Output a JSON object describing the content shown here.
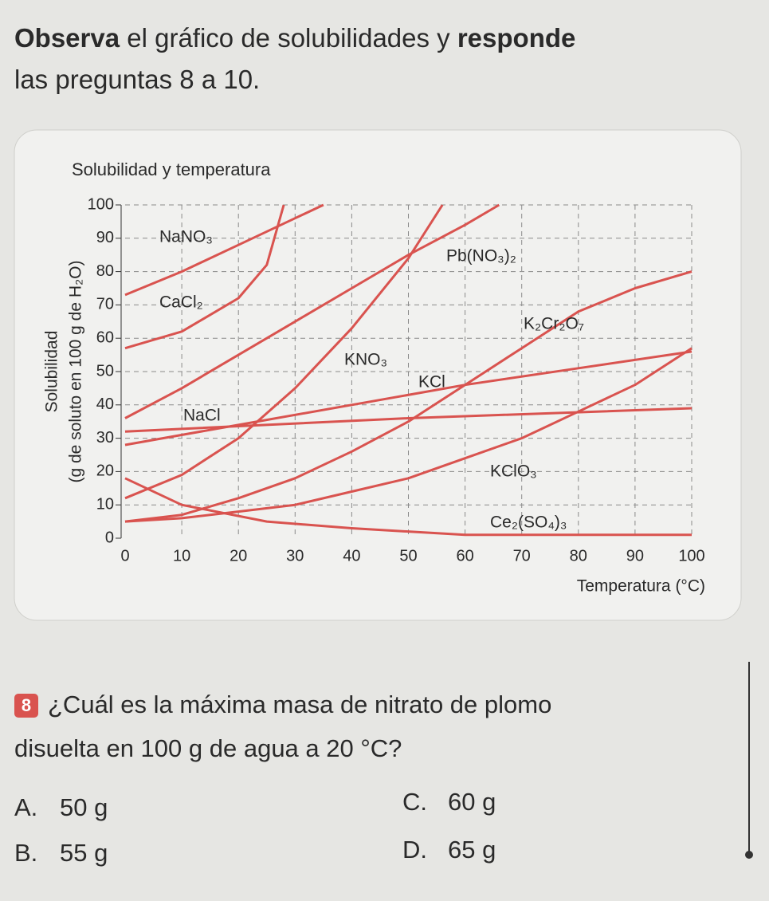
{
  "intro": {
    "lines": [
      [
        {
          "text": "Observa",
          "bold": true
        },
        {
          "text": " el gráfico de solubilidades y ",
          "bold": false
        },
        {
          "text": "responde",
          "bold": true
        }
      ],
      [
        {
          "text": "las preguntas 8 a 10.",
          "bold": false
        }
      ]
    ]
  },
  "chart_data": {
    "type": "line",
    "title": "Solubilidad y temperatura",
    "xlabel": "Temperatura (°C)",
    "ylabel": [
      "Solubilidad",
      "(g de soluto en 100 g de H₂O)"
    ],
    "xlim": [
      0,
      100
    ],
    "ylim": [
      0,
      100
    ],
    "xticks": [
      0,
      10,
      20,
      30,
      40,
      50,
      60,
      70,
      80,
      90,
      100
    ],
    "yticks": [
      0,
      10,
      20,
      30,
      40,
      50,
      60,
      70,
      80,
      90,
      100
    ],
    "grid": true,
    "series": [
      {
        "name": "NaNO₃",
        "color": "#d9534f",
        "x": [
          0,
          10,
          20,
          30,
          35
        ],
        "values": [
          73,
          80,
          88,
          96,
          100
        ]
      },
      {
        "name": "CaCl₂",
        "color": "#d9534f",
        "x": [
          0,
          10,
          20,
          25,
          28
        ],
        "values": [
          57,
          62,
          72,
          82,
          100
        ]
      },
      {
        "name": "Pb(NO₃)₂",
        "color": "#d9534f",
        "x": [
          0,
          10,
          20,
          30,
          40,
          50,
          60,
          66
        ],
        "values": [
          36,
          45,
          55,
          65,
          75,
          85,
          94,
          100
        ]
      },
      {
        "name": "KNO₃",
        "color": "#d9534f",
        "x": [
          0,
          10,
          20,
          30,
          40,
          50,
          56
        ],
        "values": [
          12,
          19,
          30,
          45,
          63,
          84,
          100
        ]
      },
      {
        "name": "K₂Cr₂O₇",
        "color": "#d9534f",
        "x": [
          0,
          10,
          20,
          30,
          40,
          50,
          60,
          70,
          80,
          90,
          100
        ],
        "values": [
          5,
          7,
          12,
          18,
          26,
          35,
          46,
          57,
          68,
          75,
          80
        ]
      },
      {
        "name": "KCl",
        "color": "#d9534f",
        "x": [
          0,
          20,
          40,
          60,
          80,
          100
        ],
        "values": [
          28,
          34,
          40,
          46,
          51,
          56
        ]
      },
      {
        "name": "NaCl",
        "color": "#d9534f",
        "x": [
          0,
          50,
          100
        ],
        "values": [
          32,
          36,
          39
        ]
      },
      {
        "name": "KClO₃",
        "color": "#d9534f",
        "x": [
          0,
          10,
          20,
          30,
          40,
          50,
          60,
          70,
          80,
          90,
          100
        ],
        "values": [
          5,
          6,
          8,
          10,
          14,
          18,
          24,
          30,
          38,
          46,
          57
        ]
      },
      {
        "name": "Ce₂(SO₄)₃",
        "color": "#d9534f",
        "x": [
          0,
          10,
          25,
          40,
          60,
          100
        ],
        "values": [
          18,
          10,
          5,
          3,
          1,
          1
        ]
      }
    ]
  },
  "question": {
    "number": "8",
    "lines": [
      "¿Cuál es la máxima masa de nitrato de plomo",
      "disuelta en 100 g de agua a 20 °C?"
    ],
    "options": [
      {
        "letter": "A.",
        "text": "50 g"
      },
      {
        "letter": "B.",
        "text": "55 g"
      },
      {
        "letter": "C.",
        "text": "60 g"
      },
      {
        "letter": "D.",
        "text": "65 g"
      }
    ]
  }
}
